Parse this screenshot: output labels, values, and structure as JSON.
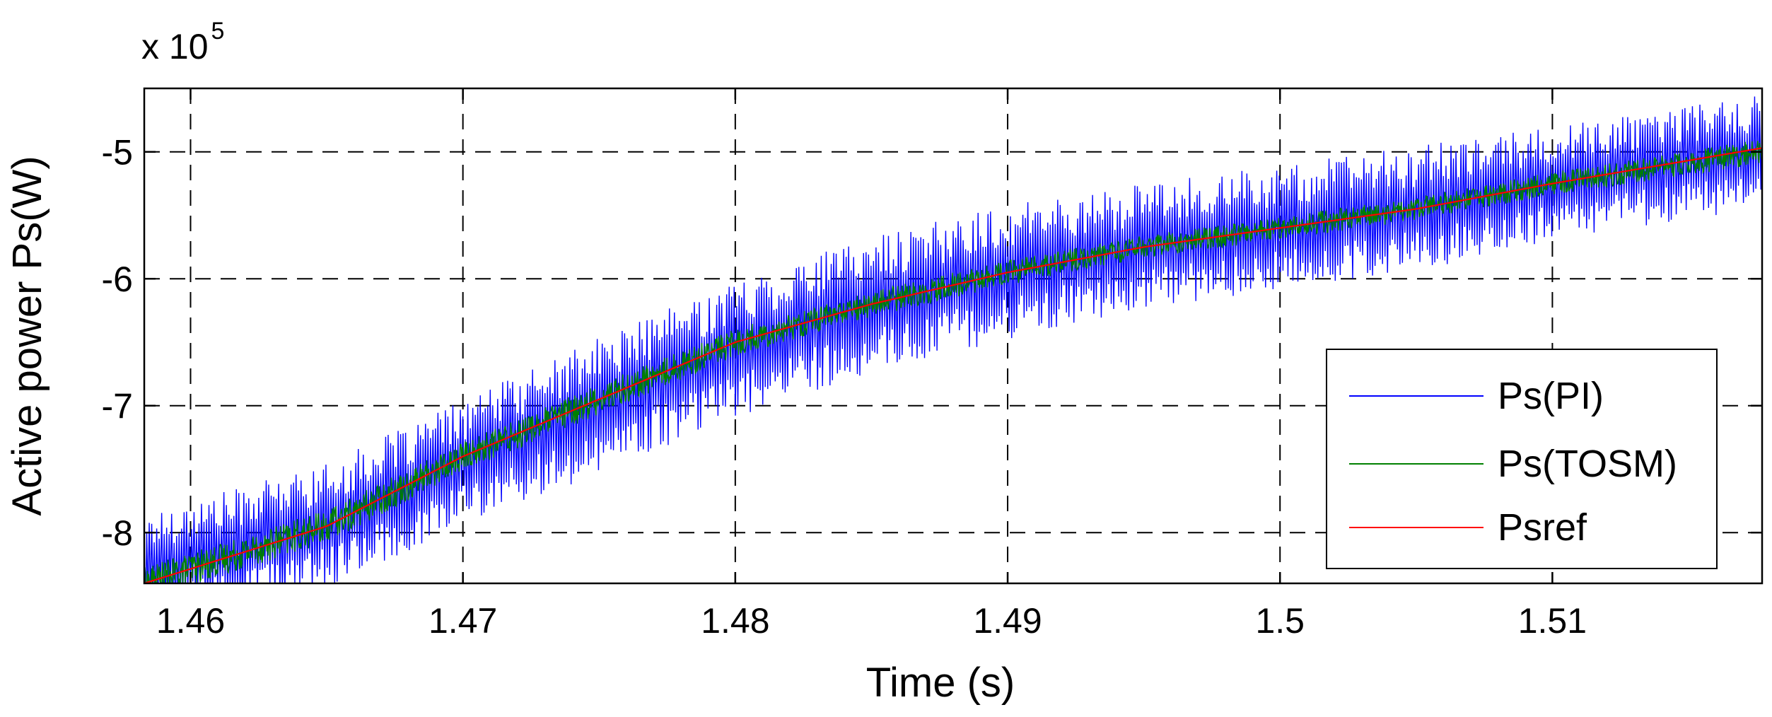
{
  "chart_data": {
    "type": "line",
    "xlabel": "Time (s)",
    "ylabel": "Active power Ps(W)",
    "y_multiplier_label": "x 10",
    "y_multiplier_exponent": "5",
    "xlim": [
      1.4583,
      1.5177
    ],
    "ylim": [
      -8.4,
      -4.5
    ],
    "x_ticks": [
      1.46,
      1.47,
      1.48,
      1.49,
      1.5,
      1.51
    ],
    "x_tick_labels": [
      "1.46",
      "1.47",
      "1.48",
      "1.49",
      "1.5",
      "1.51"
    ],
    "y_ticks": [
      -8,
      -7,
      -6,
      -5
    ],
    "y_tick_labels": [
      "-8",
      "-7",
      "-6",
      "-5"
    ],
    "grid": true,
    "legend_position": "bottom-right",
    "series": [
      {
        "name": "Ps(PI)",
        "color": "#0000ff",
        "style": "high-frequency oscillation around reference",
        "x": [
          1.4583,
          1.465,
          1.47,
          1.475,
          1.48,
          1.485,
          1.49,
          1.495,
          1.5,
          1.505,
          1.51,
          1.5177
        ],
        "y": [
          -8.3,
          -7.95,
          -7.45,
          -7.0,
          -6.55,
          -6.2,
          -5.95,
          -5.75,
          -5.6,
          -5.45,
          -5.25,
          -5.0
        ],
        "amplitude": [
          0.5,
          0.55,
          0.55,
          0.6,
          0.6,
          0.6,
          0.6,
          0.55,
          0.55,
          0.55,
          0.5,
          0.5
        ]
      },
      {
        "name": "Ps(TOSM)",
        "color": "#008000",
        "style": "small oscillation around reference",
        "x": [
          1.4583,
          1.465,
          1.47,
          1.475,
          1.48,
          1.485,
          1.49,
          1.495,
          1.5,
          1.505,
          1.51,
          1.5177
        ],
        "y": [
          -8.4,
          -7.95,
          -7.4,
          -6.95,
          -6.5,
          -6.2,
          -5.95,
          -5.75,
          -5.6,
          -5.45,
          -5.25,
          -5.0
        ],
        "amplitude": [
          0.13,
          0.13,
          0.12,
          0.12,
          0.11,
          0.1,
          0.1,
          0.09,
          0.09,
          0.09,
          0.09,
          0.1
        ]
      },
      {
        "name": "Psref",
        "color": "#ff0000",
        "x": [
          1.4583,
          1.465,
          1.47,
          1.475,
          1.48,
          1.485,
          1.49,
          1.495,
          1.5,
          1.505,
          1.51,
          1.5177
        ],
        "y": [
          -8.4,
          -7.95,
          -7.4,
          -6.95,
          -6.5,
          -6.2,
          -5.95,
          -5.75,
          -5.6,
          -5.45,
          -5.25,
          -4.97
        ]
      }
    ]
  }
}
